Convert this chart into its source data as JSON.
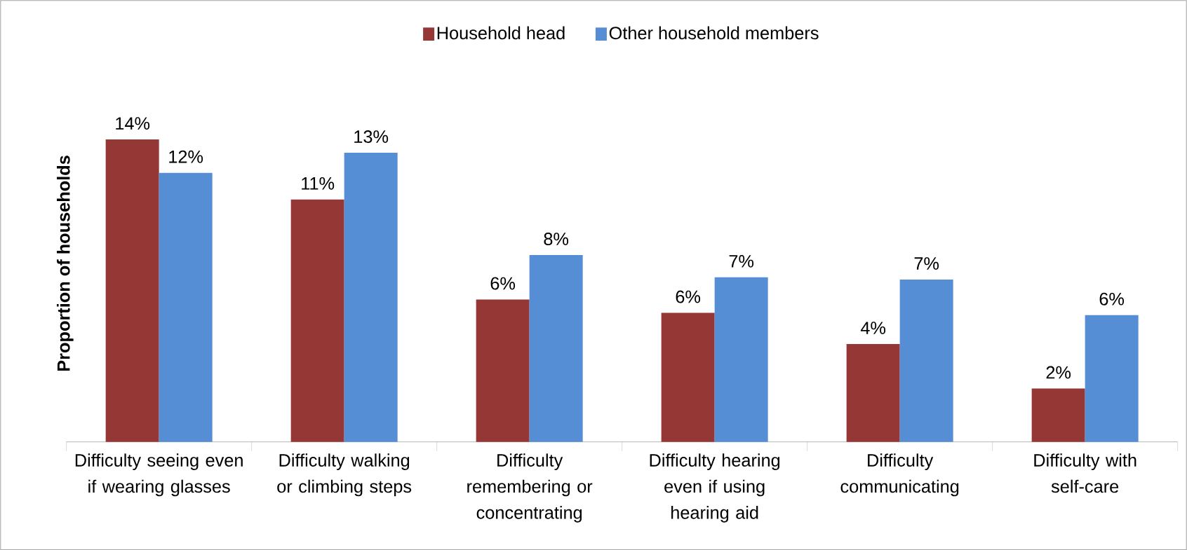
{
  "chart_data": {
    "type": "bar",
    "ylabel": "Proportion of households",
    "categories": [
      "Difficulty seeing even if wearing glasses",
      "Difficulty walking or climbing steps",
      "Difficulty remembering or concentrating",
      "Difficulty hearing even if using hearing aid",
      "Difficulty communicating",
      "Difficulty with self-care"
    ],
    "series": [
      {
        "name": "Household head",
        "color": "#953735",
        "values": [
          13.6,
          10.9,
          6.4,
          5.8,
          4.4,
          2.4
        ],
        "value_labels": [
          "14%",
          "11%",
          "6%",
          "6%",
          "4%",
          "2%"
        ]
      },
      {
        "name": "Other household members",
        "color": "#558ed5",
        "values": [
          12.1,
          13.0,
          8.4,
          7.4,
          7.3,
          5.7
        ],
        "value_labels": [
          "12%",
          "13%",
          "8%",
          "7%",
          "7%",
          "6%"
        ]
      }
    ],
    "legend": "top"
  }
}
